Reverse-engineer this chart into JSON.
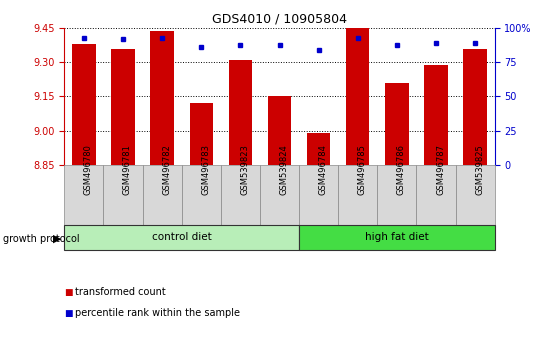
{
  "title": "GDS4010 / 10905804",
  "samples": [
    "GSM496780",
    "GSM496781",
    "GSM496782",
    "GSM496783",
    "GSM539823",
    "GSM539824",
    "GSM496784",
    "GSM496785",
    "GSM496786",
    "GSM496787",
    "GSM539825"
  ],
  "red_values": [
    9.38,
    9.36,
    9.44,
    9.12,
    9.31,
    9.15,
    8.99,
    9.45,
    9.21,
    9.29,
    9.36
  ],
  "blue_values": [
    93,
    92,
    93,
    86,
    88,
    88,
    84,
    93,
    88,
    89,
    89
  ],
  "ylim_left": [
    8.85,
    9.45
  ],
  "ylim_right": [
    0,
    100
  ],
  "yticks_left": [
    8.85,
    9.0,
    9.15,
    9.3,
    9.45
  ],
  "yticks_right": [
    0,
    25,
    50,
    75,
    100
  ],
  "ytick_labels_right": [
    "0",
    "25",
    "50",
    "75",
    "100%"
  ],
  "groups": [
    {
      "label": "control diet",
      "start": 0,
      "end": 6,
      "color": "#B8EEB8"
    },
    {
      "label": "high fat diet",
      "start": 6,
      "end": 11,
      "color": "#44DD44"
    }
  ],
  "group_label": "growth protocol",
  "legend_red": "transformed count",
  "legend_blue": "percentile rank within the sample",
  "bar_color": "#CC0000",
  "dot_color": "#0000CC",
  "axis_left_color": "#CC0000",
  "axis_right_color": "#0000CC"
}
